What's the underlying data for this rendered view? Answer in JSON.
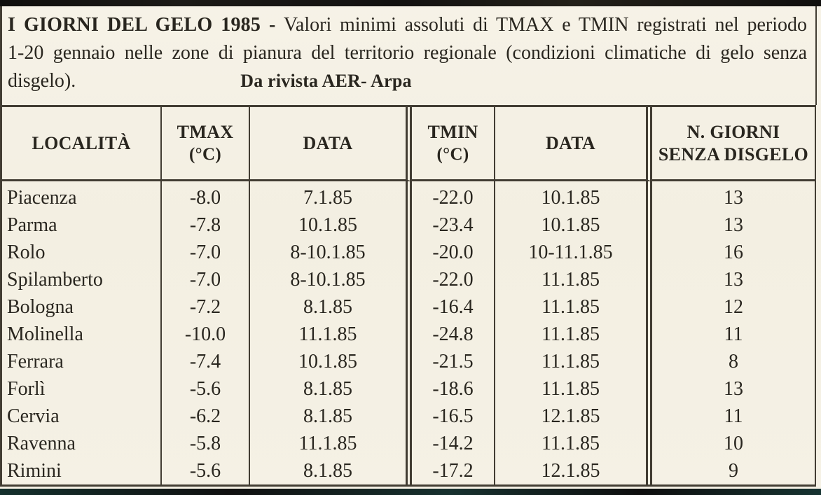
{
  "caption": {
    "line1_bold": "I GIORNI DEL GELO 1985 -",
    "line1_rest": " Valori minimi assoluti di TMAX e TMIN registrati nel periodo",
    "line2": "1-20 gennaio nelle zone di pianura del territorio regionale (condizioni climatiche di gelo senza",
    "line3": "disgelo).",
    "source": "Da rivista AER- Arpa"
  },
  "table": {
    "headers": {
      "locality": "LOCALITÀ",
      "tmax": [
        "TMAX",
        "(°C)"
      ],
      "data_tmax": "DATA",
      "tmin": [
        "TMIN",
        "(°C)"
      ],
      "data_tmin": "DATA",
      "giorni": [
        "N. GIORNI",
        "SENZA DISGELO"
      ]
    },
    "rows": [
      {
        "locality": "Piacenza",
        "tmax": "-8.0",
        "tmax_date": "7.1.85",
        "tmin": "-22.0",
        "tmin_date": "10.1.85",
        "giorni": "13"
      },
      {
        "locality": "Parma",
        "tmax": "-7.8",
        "tmax_date": "10.1.85",
        "tmin": "-23.4",
        "tmin_date": "10.1.85",
        "giorni": "13"
      },
      {
        "locality": "Rolo",
        "tmax": "-7.0",
        "tmax_date": "8-10.1.85",
        "tmin": "-20.0",
        "tmin_date": "10-11.1.85",
        "giorni": "16"
      },
      {
        "locality": "Spilamberto",
        "tmax": "-7.0",
        "tmax_date": "8-10.1.85",
        "tmin": "-22.0",
        "tmin_date": "11.1.85",
        "giorni": "13"
      },
      {
        "locality": "Bologna",
        "tmax": "-7.2",
        "tmax_date": "8.1.85",
        "tmin": "-16.4",
        "tmin_date": "11.1.85",
        "giorni": "12"
      },
      {
        "locality": "Molinella",
        "tmax": "-10.0",
        "tmax_date": "11.1.85",
        "tmin": "-24.8",
        "tmin_date": "11.1.85",
        "giorni": "11"
      },
      {
        "locality": "Ferrara",
        "tmax": "-7.4",
        "tmax_date": "10.1.85",
        "tmin": "-21.5",
        "tmin_date": "11.1.85",
        "giorni": "8"
      },
      {
        "locality": "Forlì",
        "tmax": "-5.6",
        "tmax_date": "8.1.85",
        "tmin": "-18.6",
        "tmin_date": "11.1.85",
        "giorni": "13"
      },
      {
        "locality": "Cervia",
        "tmax": "-6.2",
        "tmax_date": "8.1.85",
        "tmin": "-16.5",
        "tmin_date": "12.1.85",
        "giorni": "11"
      },
      {
        "locality": "Ravenna",
        "tmax": "-5.8",
        "tmax_date": "11.1.85",
        "tmin": "-14.2",
        "tmin_date": "11.1.85",
        "giorni": "10"
      },
      {
        "locality": "Rimini",
        "tmax": "-5.6",
        "tmax_date": "8.1.85",
        "tmin": "-17.2",
        "tmin_date": "12.1.85",
        "giorni": "9"
      }
    ]
  }
}
